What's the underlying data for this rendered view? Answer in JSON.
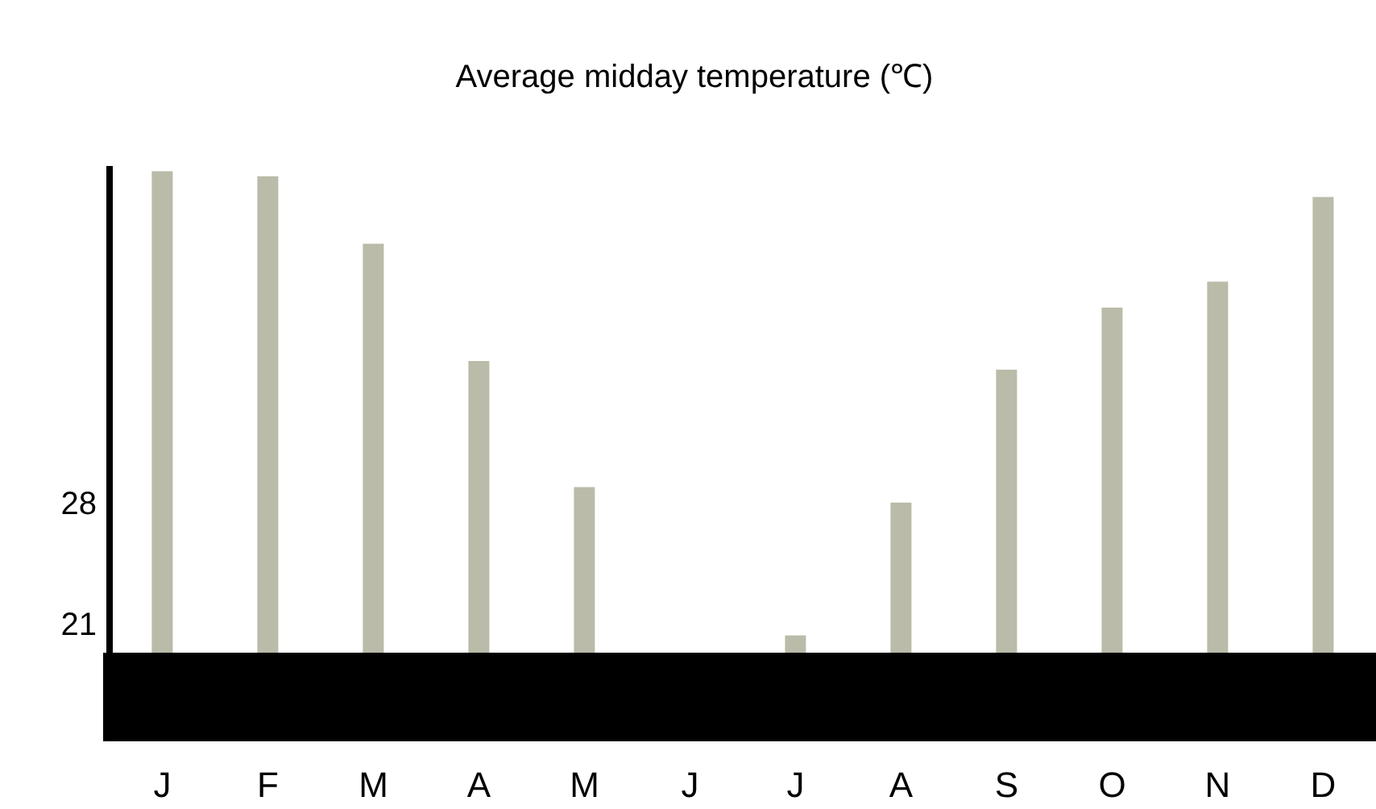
{
  "chart_data": {
    "type": "bar",
    "title": "Average midday temperature (℃)",
    "categories": [
      "J",
      "F",
      "M",
      "A",
      "M",
      "J",
      "J",
      "A",
      "S",
      "O",
      "N",
      "D"
    ],
    "values": [
      47.2,
      46.9,
      43.0,
      36.2,
      28.9,
      19.3,
      20.3,
      28.0,
      35.7,
      39.3,
      40.8,
      45.7
    ],
    "color": "#babba8",
    "ylim": [
      19.3,
      47.5
    ],
    "yticks": [
      21,
      28
    ]
  }
}
